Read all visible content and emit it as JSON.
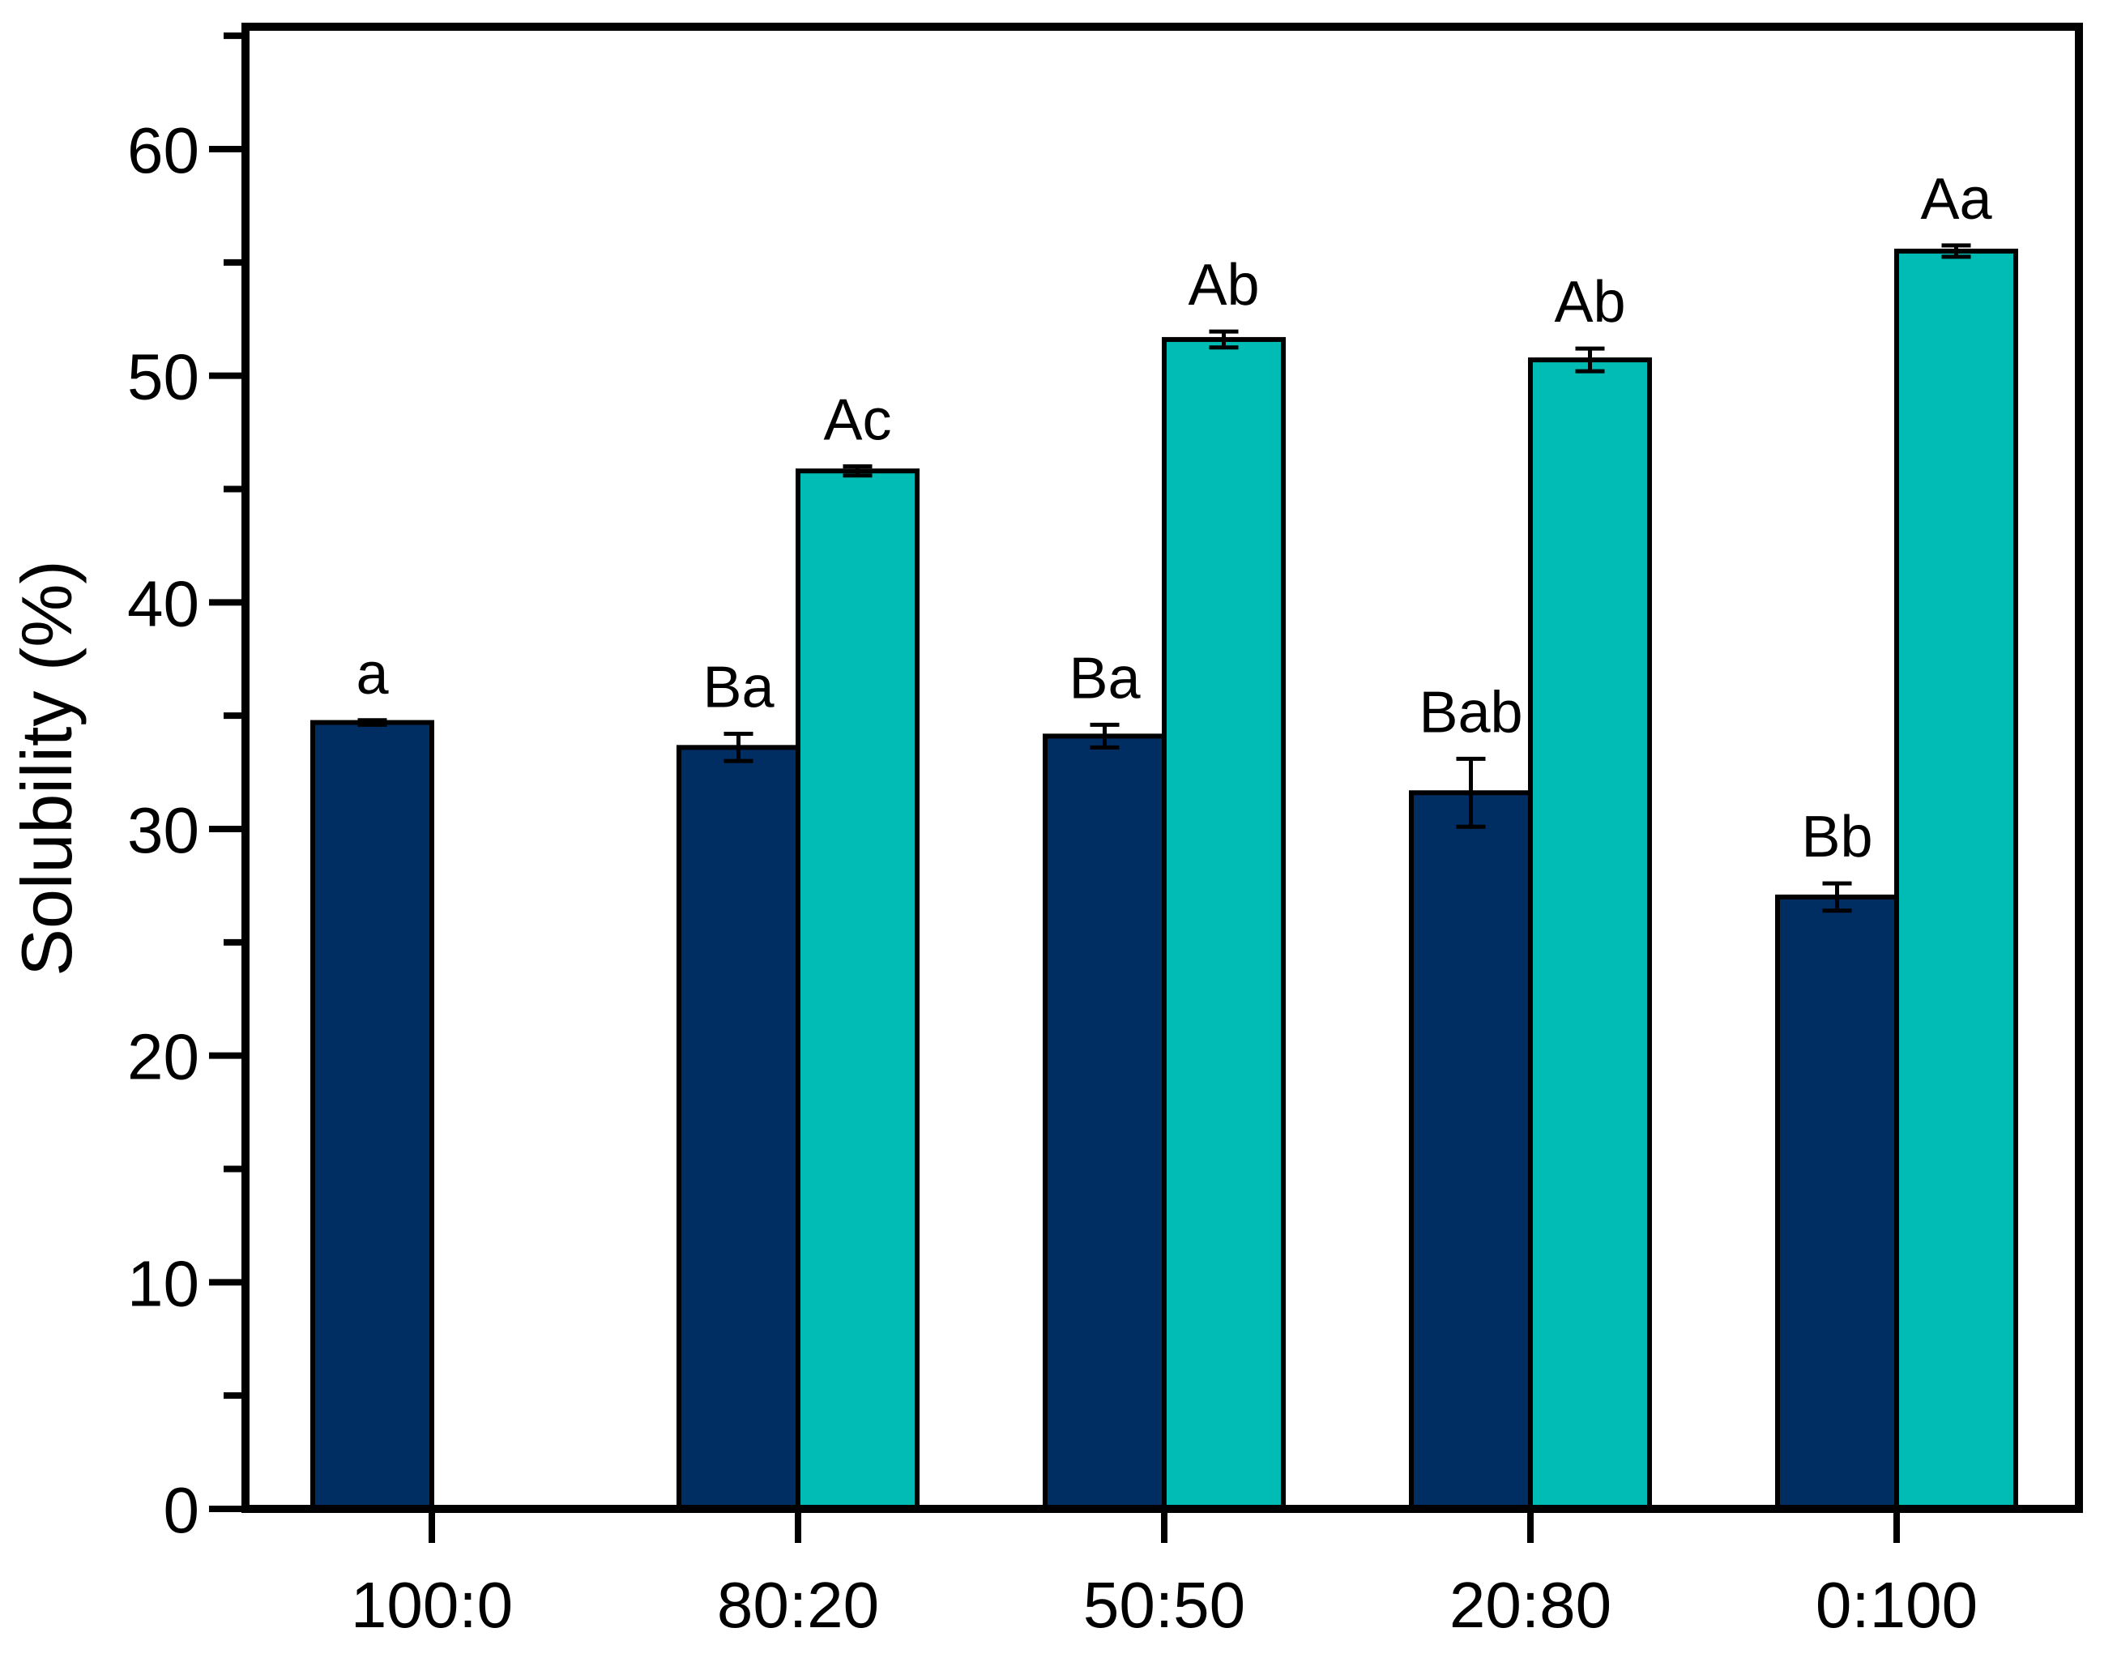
{
  "figure": {
    "background": "#ffffff"
  },
  "chart_data": {
    "type": "bar",
    "title": "",
    "xlabel": "",
    "ylabel": "Solubility (%)",
    "categories": [
      "100:0",
      "80:20",
      "50:50",
      "20:80",
      "0:100"
    ],
    "series": [
      {
        "name": "dark-navy-bars",
        "color": "#002D62",
        "values": [
          34.7,
          33.6,
          34.1,
          31.6,
          27.0
        ],
        "errors": [
          0.1,
          0.6,
          0.5,
          1.5,
          0.6
        ],
        "sig_labels": [
          "a",
          "Ba",
          "Ba",
          "Bab",
          "Bb"
        ]
      },
      {
        "name": "teal-bars",
        "color": "#00BCB4",
        "values": [
          null,
          45.8,
          51.6,
          50.7,
          55.5
        ],
        "errors": [
          null,
          0.2,
          0.35,
          0.5,
          0.25
        ],
        "sig_labels": [
          null,
          "Ac",
          "Ab",
          "Ab",
          "Aa"
        ]
      }
    ],
    "ylim": [
      0,
      65.4
    ],
    "yticks": [
      0,
      10,
      20,
      30,
      40,
      50,
      60
    ],
    "ytick_minor_step": 5,
    "grid": false,
    "legend": null,
    "bar_outline_color": "#000000",
    "error_bar_color": "#000000",
    "axis_color": "#000000"
  }
}
